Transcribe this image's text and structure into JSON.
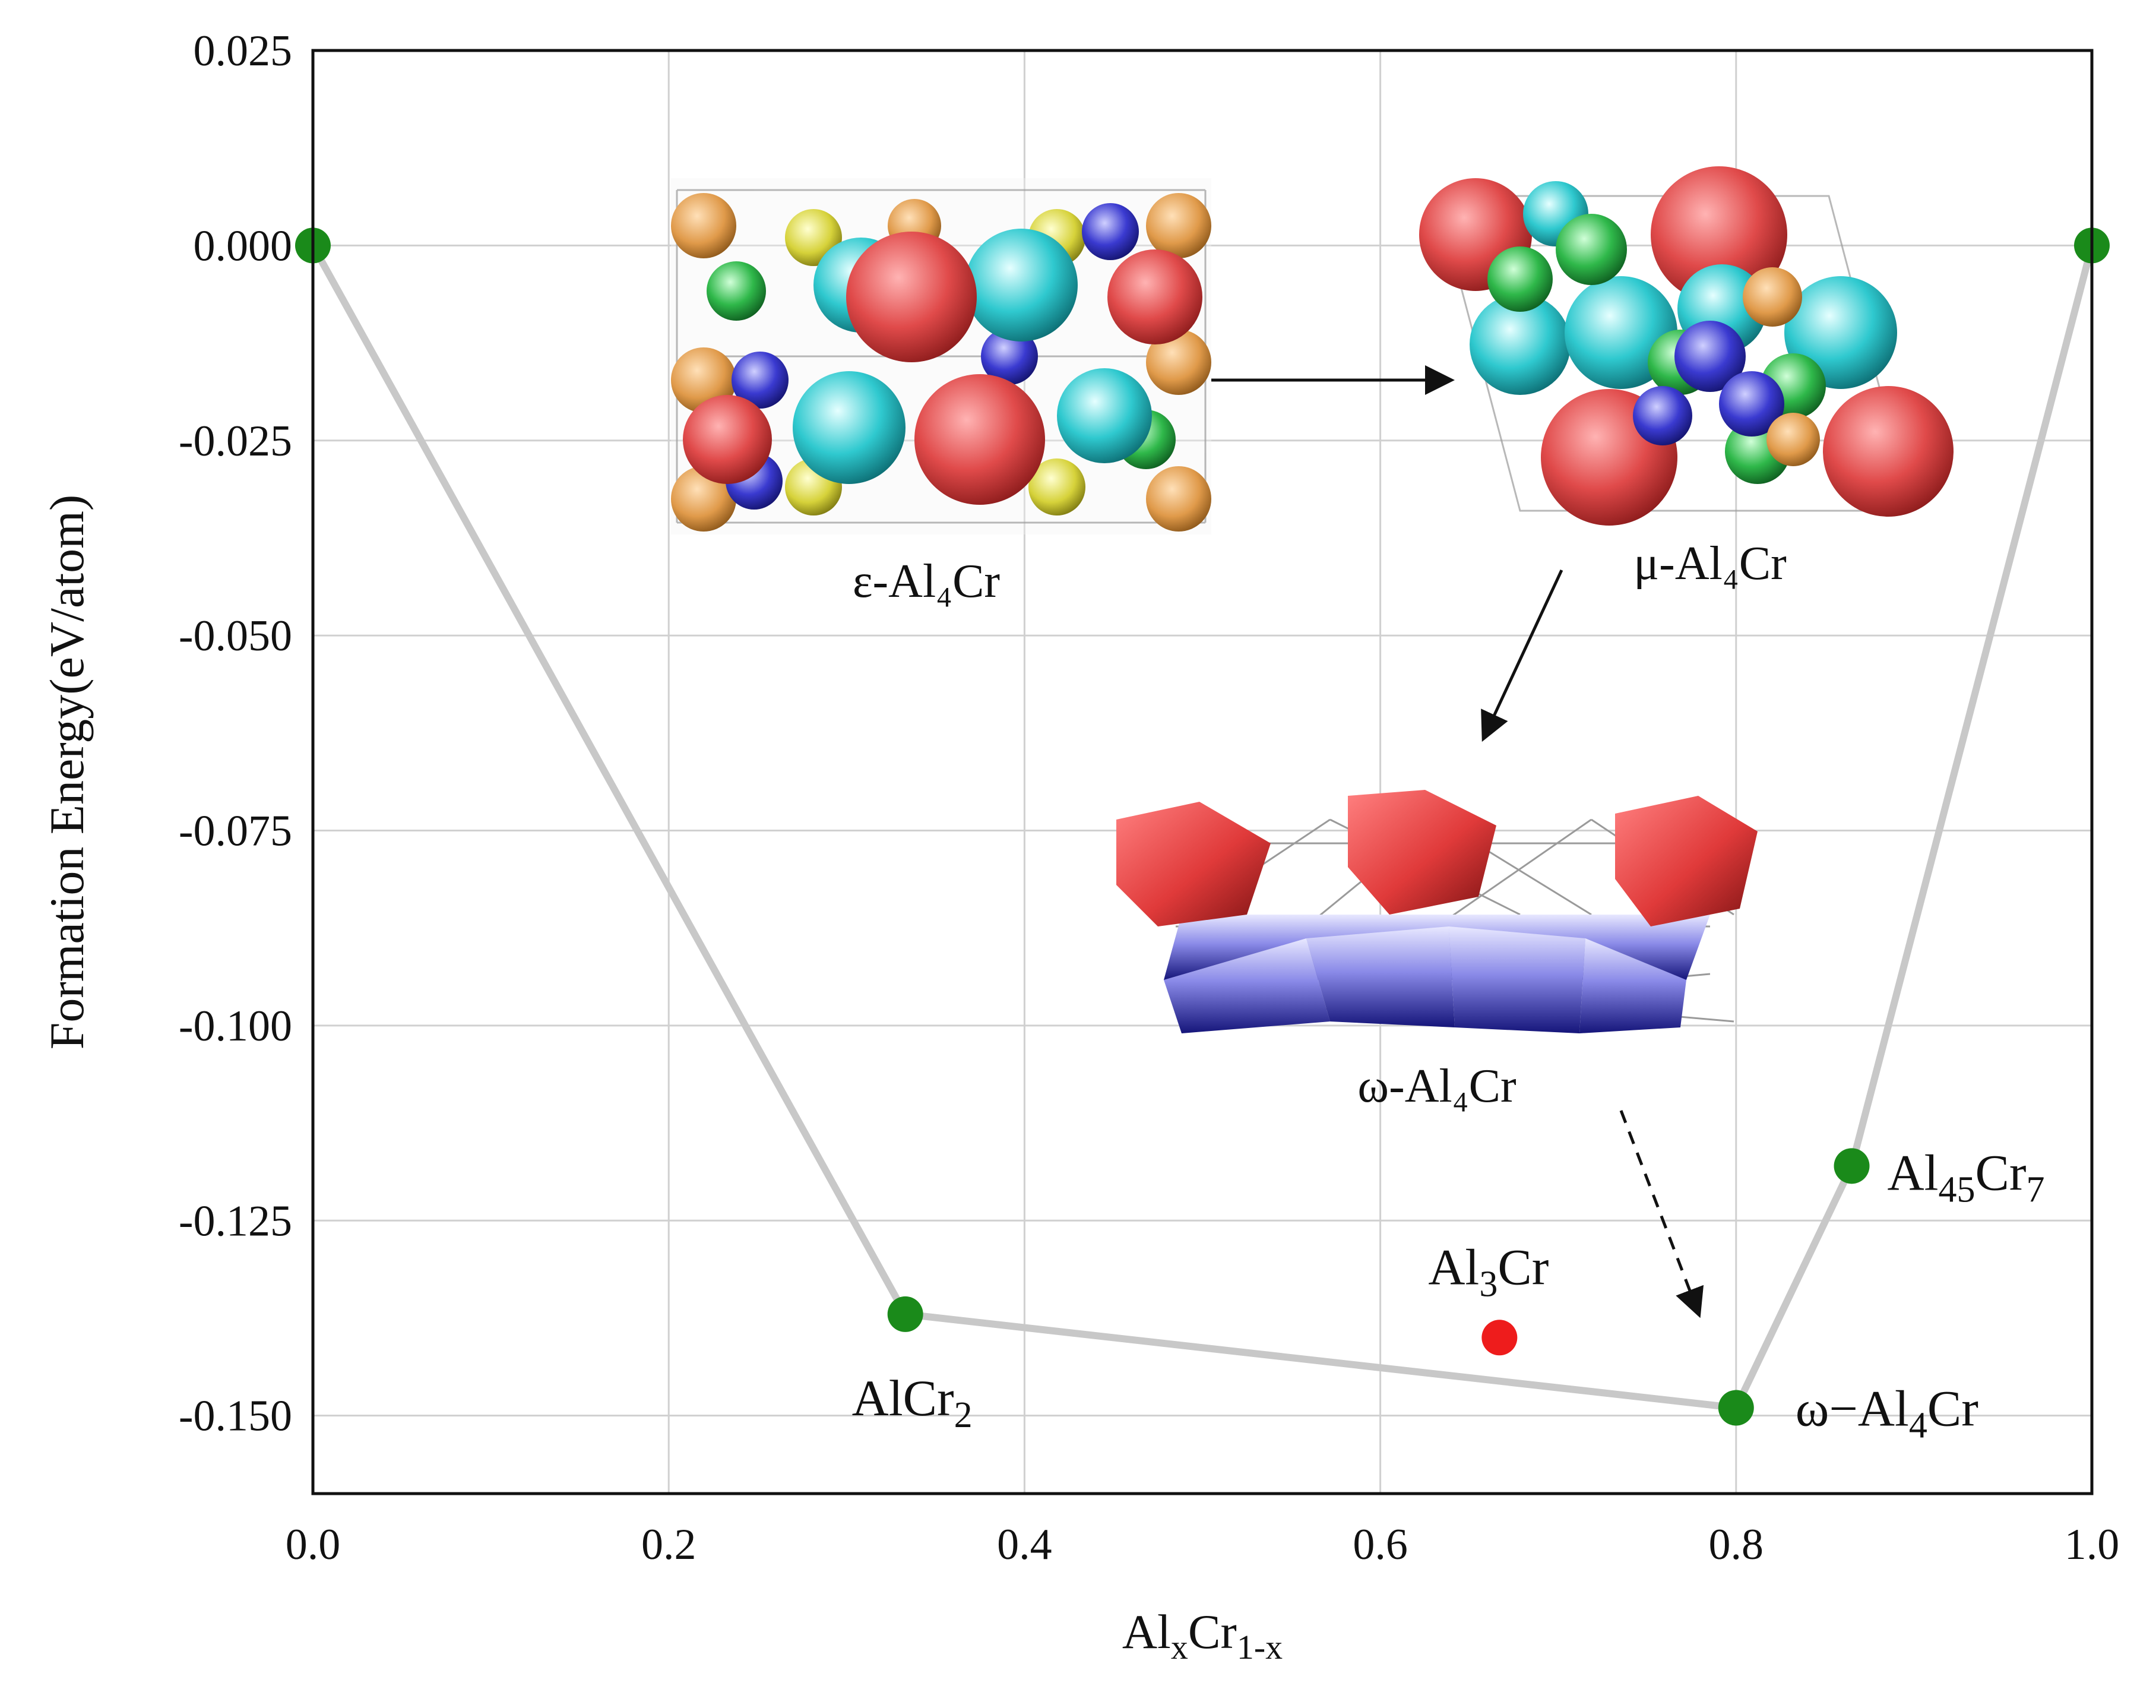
{
  "chart_data": {
    "type": "scatter",
    "xlabel": {
      "main": "Al",
      "sub1": "x",
      "mid": "Cr",
      "sub2": "1-x"
    },
    "ylabel": "Formation Energy(eV/atom)",
    "xlim": [
      0.0,
      1.0
    ],
    "ylim": [
      -0.16,
      0.025
    ],
    "x_ticks": [
      "0.0",
      "0.2",
      "0.4",
      "0.6",
      "0.8",
      "1.0"
    ],
    "y_ticks": [
      "0.025",
      "0.000",
      "-0.025",
      "-0.050",
      "-0.075",
      "-0.100",
      "-0.125",
      "-0.150"
    ],
    "x_tick_values": [
      0.0,
      0.2,
      0.4,
      0.6,
      0.8,
      1.0
    ],
    "y_tick_values": [
      0.025,
      0.0,
      -0.025,
      -0.05,
      -0.075,
      -0.1,
      -0.125,
      -0.15
    ],
    "grid": true,
    "points": [
      {
        "x": 0.0,
        "y": 0.0,
        "color": "#1a8a1a",
        "label": ""
      },
      {
        "x": 0.333,
        "y": -0.137,
        "color": "#1a8a1a",
        "label_main": "AlCr",
        "label_sub": "2"
      },
      {
        "x": 0.667,
        "y": -0.14,
        "color": "#ee1c1c",
        "label_main": "Al",
        "label_sub": "3",
        "label_tail": "Cr"
      },
      {
        "x": 0.8,
        "y": -0.149,
        "color": "#1a8a1a",
        "label_main": "ω−Al",
        "label_sub": "4",
        "label_tail": "Cr"
      },
      {
        "x": 0.865,
        "y": -0.118,
        "color": "#1a8a1a",
        "label_main": "Al",
        "label_sub": "45",
        "label_tail": "Cr",
        "label_sub2": "7"
      },
      {
        "x": 1.0,
        "y": 0.0,
        "color": "#1a8a1a",
        "label": ""
      }
    ],
    "hull": [
      [
        0.0,
        0.0
      ],
      [
        0.333,
        -0.137
      ],
      [
        0.8,
        -0.149
      ],
      [
        0.865,
        -0.118
      ],
      [
        1.0,
        0.0
      ]
    ],
    "insets": [
      {
        "name": "epsilon",
        "label": "ε-Al₄Cr"
      },
      {
        "name": "mu",
        "label": "μ-Al₄Cr"
      },
      {
        "name": "omega",
        "label": "ω-Al₄Cr"
      }
    ],
    "colors": {
      "hull": "#c8c8c8",
      "stable": "#1a8a1a",
      "unstable": "#ee1c1c"
    }
  }
}
